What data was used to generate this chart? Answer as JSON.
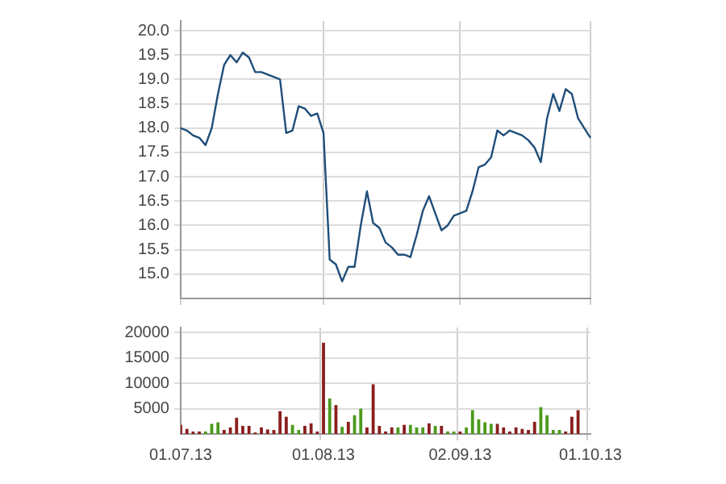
{
  "chart_data": [
    {
      "type": "line",
      "categories": [
        "01.07.13",
        null,
        null,
        null,
        null,
        null,
        null,
        null,
        null,
        null,
        null,
        null,
        null,
        null,
        null,
        null,
        null,
        null,
        null,
        null,
        null,
        null,
        null,
        "01.08.13",
        null,
        null,
        null,
        null,
        null,
        null,
        null,
        null,
        null,
        null,
        null,
        null,
        null,
        null,
        null,
        null,
        null,
        null,
        null,
        null,
        null,
        "02.09.13",
        null,
        null,
        null,
        null,
        null,
        null,
        null,
        null,
        null,
        null,
        null,
        null,
        null,
        null,
        null,
        null,
        null,
        null,
        null,
        null,
        "01.10.13"
      ],
      "series": [
        {
          "color": "#1f4e79",
          "values": [
            18.0,
            17.95,
            17.85,
            17.8,
            17.65,
            18.0,
            18.7,
            19.3,
            19.5,
            19.35,
            19.55,
            19.45,
            19.15,
            19.15,
            19.1,
            19.05,
            19.0,
            17.9,
            17.95,
            18.45,
            18.4,
            18.25,
            18.3,
            17.9,
            15.3,
            15.2,
            14.85,
            15.15,
            15.15,
            16.0,
            16.7,
            16.05,
            15.95,
            15.65,
            15.55,
            15.4,
            15.4,
            15.35,
            15.8,
            16.3,
            16.6,
            16.25,
            15.9,
            16.0,
            16.2,
            16.25,
            16.3,
            16.7,
            17.2,
            17.25,
            17.4,
            17.95,
            17.85,
            17.95,
            17.9,
            17.85,
            17.75,
            17.6,
            17.3,
            18.2,
            18.7,
            18.35,
            18.8,
            18.7,
            18.2,
            18.0,
            17.8
          ]
        }
      ],
      "ylim": [
        14.5,
        20.2
      ],
      "yticks": [
        {
          "value": 15,
          "label": "15.0"
        },
        {
          "value": 15.5,
          "label": "15.5"
        },
        {
          "value": 16,
          "label": "16.0"
        },
        {
          "value": 16.5,
          "label": "16.5"
        },
        {
          "value": 17,
          "label": "17.0"
        },
        {
          "value": 17.5,
          "label": "17.5"
        },
        {
          "value": 18,
          "label": "18.0"
        },
        {
          "value": 18.5,
          "label": "18.5"
        },
        {
          "value": 19,
          "label": "19.0"
        },
        {
          "value": 19.5,
          "label": "19.5"
        },
        {
          "value": 20,
          "label": "20.0"
        }
      ],
      "grid": true,
      "tick_labels": "y"
    },
    {
      "type": "bar",
      "categories": [
        "01.07.13",
        null,
        null,
        null,
        null,
        null,
        null,
        null,
        null,
        null,
        null,
        null,
        null,
        null,
        null,
        null,
        null,
        null,
        null,
        null,
        null,
        null,
        null,
        "01.08.13",
        null,
        null,
        null,
        null,
        null,
        null,
        null,
        null,
        null,
        null,
        null,
        null,
        null,
        null,
        null,
        null,
        null,
        null,
        null,
        null,
        null,
        "02.09.13",
        null,
        null,
        null,
        null,
        null,
        null,
        null,
        null,
        null,
        null,
        null,
        null,
        null,
        null,
        null,
        null,
        null,
        null,
        null,
        null,
        "01.10.13"
      ],
      "values": [
        1800,
        1000,
        500,
        500,
        500,
        2000,
        2300,
        800,
        1300,
        3200,
        1600,
        1600,
        300,
        1300,
        900,
        800,
        4500,
        3400,
        1800,
        800,
        1600,
        2100,
        500,
        18000,
        7000,
        5700,
        1400,
        2400,
        3700,
        5000,
        1300,
        9800,
        1600,
        500,
        1300,
        1300,
        1800,
        1800,
        1300,
        1300,
        2100,
        1600,
        1600,
        500,
        500,
        500,
        1300,
        4700,
        2900,
        2300,
        2000,
        2000,
        1300,
        500,
        1300,
        1000,
        800,
        2400,
        5300,
        3700,
        800,
        800,
        500,
        3400,
        4700,
        null,
        null
      ],
      "colors": [
        "#8b1e1e",
        "#8b1e1e",
        "#8b1e1e",
        "#8b1e1e",
        "#4c9a1c",
        "#4c9a1c",
        "#4c9a1c",
        "#8b1e1e",
        "#8b1e1e",
        "#8b1e1e",
        "#8b1e1e",
        "#8b1e1e",
        "#8b1e1e",
        "#8b1e1e",
        "#8b1e1e",
        "#8b1e1e",
        "#8b1e1e",
        "#8b1e1e",
        "#4c9a1c",
        "#4c9a1c",
        "#8b1e1e",
        "#8b1e1e",
        "#8b1e1e",
        "#8b1e1e",
        "#4c9a1c",
        "#8b1e1e",
        "#4c9a1c",
        "#8b1e1e",
        "#4c9a1c",
        "#4c9a1c",
        "#8b1e1e",
        "#8b1e1e",
        "#8b1e1e",
        "#8b1e1e",
        "#8b1e1e",
        "#4c9a1c",
        "#8b1e1e",
        "#4c9a1c",
        "#4c9a1c",
        "#4c9a1c",
        "#8b1e1e",
        "#4c9a1c",
        "#8b1e1e",
        "#4c9a1c",
        "#4c9a1c",
        "#8b1e1e",
        "#4c9a1c",
        "#4c9a1c",
        "#4c9a1c",
        "#4c9a1c",
        "#4c9a1c",
        "#8b1e1e",
        "#8b1e1e",
        "#8b1e1e",
        "#8b1e1e",
        "#8b1e1e",
        "#8b1e1e",
        "#8b1e1e",
        "#4c9a1c",
        "#4c9a1c",
        "#4c9a1c",
        "#4c9a1c",
        "#8b1e1e",
        "#8b1e1e",
        "#8b1e1e",
        "#8b1e1e",
        "#8b1e1e"
      ],
      "ylim": [
        0,
        21000
      ],
      "yticks": [
        5000,
        10000,
        15000,
        20000
      ],
      "grid": true
    }
  ]
}
